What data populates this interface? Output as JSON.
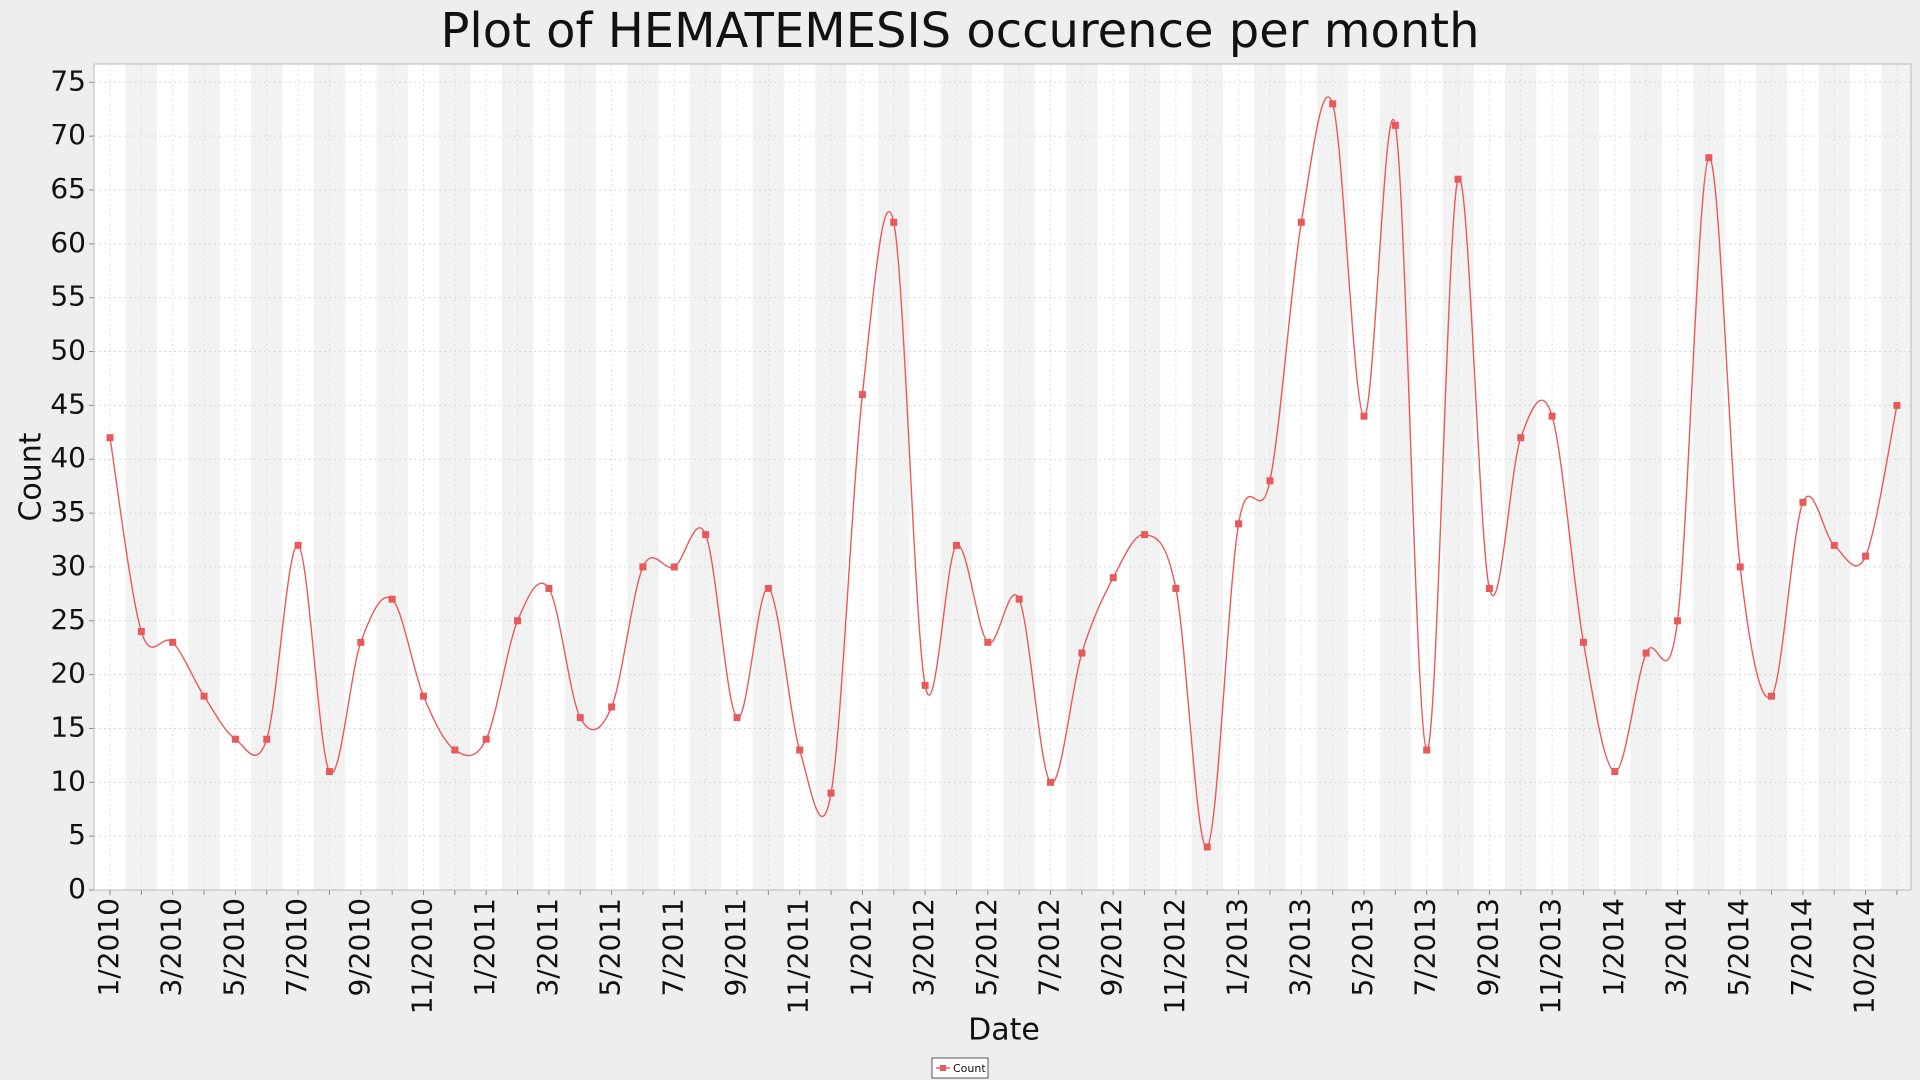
{
  "chart_data": {
    "type": "line",
    "title": "Plot of HEMATEMESIS occurence per month",
    "xlabel": "Date",
    "ylabel": "Count",
    "categories": [
      "1/2010",
      null,
      "3/2010",
      null,
      "5/2010",
      null,
      "7/2010",
      null,
      "9/2010",
      null,
      "11/2010",
      null,
      "1/2011",
      null,
      "3/2011",
      null,
      "5/2011",
      null,
      "7/2011",
      null,
      "9/2011",
      null,
      "11/2011",
      null,
      "1/2012",
      null,
      "3/2012",
      null,
      "5/2012",
      null,
      "7/2012",
      null,
      "9/2012",
      null,
      "11/2012",
      null,
      "1/2013",
      null,
      "3/2013",
      null,
      "5/2013",
      null,
      "7/2013",
      null,
      "9/2013",
      null,
      "11/2013",
      null,
      "1/2014",
      null,
      "3/2014",
      null,
      "5/2014",
      null,
      "7/2014",
      null,
      "10/2014",
      null
    ],
    "series": [
      {
        "name": "Count",
        "color": "#e85a5a",
        "values": [
          42,
          24,
          23,
          18,
          14,
          14,
          32,
          11,
          23,
          27,
          18,
          13,
          14,
          25,
          28,
          16,
          17,
          30,
          30,
          33,
          16,
          28,
          13,
          9,
          46,
          62,
          19,
          32,
          23,
          27,
          10,
          22,
          29,
          33,
          28,
          4,
          34,
          38,
          62,
          73,
          44,
          71,
          13,
          66,
          28,
          42,
          44,
          23,
          11,
          22,
          25,
          68,
          30,
          18,
          36,
          32,
          31,
          45
        ]
      }
    ],
    "ylim": [
      0,
      76.7
    ],
    "yticks": [
      0,
      5,
      10,
      15,
      20,
      25,
      30,
      35,
      40,
      45,
      50,
      55,
      60,
      65,
      70,
      75
    ],
    "grid": true,
    "legend": "bottom"
  }
}
